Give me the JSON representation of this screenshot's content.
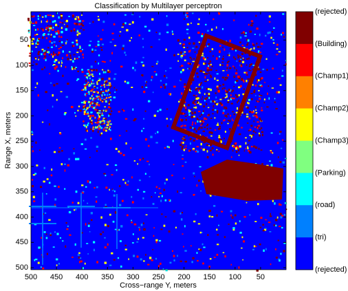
{
  "chart_data": {
    "type": "image",
    "title": "Classification by Multilayer perceptron",
    "xlabel": "Cross−range Y, meters",
    "ylabel": "Range X, meters",
    "xlim": [
      500,
      0
    ],
    "xticks": [
      500,
      450,
      400,
      350,
      300,
      250,
      200,
      150,
      100,
      50
    ],
    "ylim": [
      -6,
      504
    ],
    "yticks": [
      50,
      100,
      150,
      200,
      250,
      300,
      350,
      400,
      450,
      500
    ],
    "colorbar": {
      "labels": [
        "(rejected)",
        "(Building)",
        "(Champ1)",
        "(Champ2)",
        "(Champ3)",
        "(Parking)",
        "(road)",
        "(tri)",
        "(rejected)"
      ],
      "colors": [
        "#800000",
        "#ff0000",
        "#ff8000",
        "#ffff00",
        "#80ff80",
        "#00ffff",
        "#0080ff",
        "#0000ff"
      ]
    }
  }
}
